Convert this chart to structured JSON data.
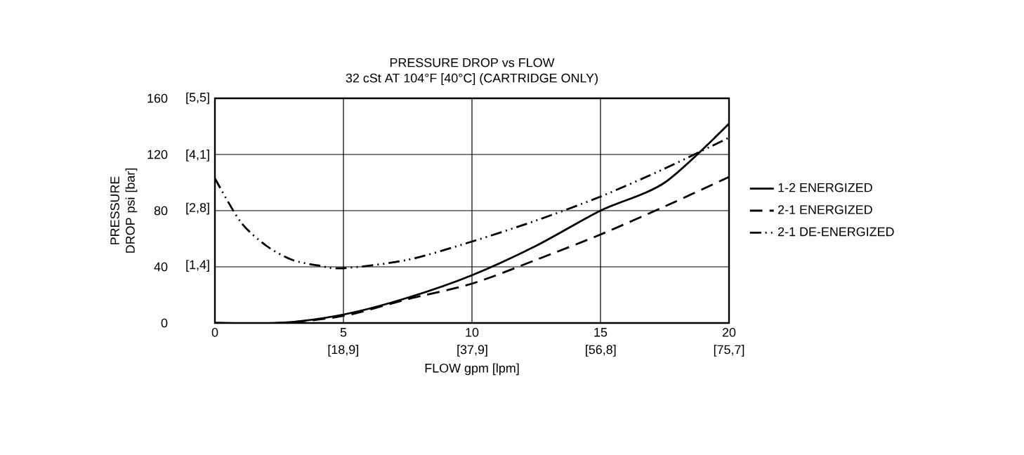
{
  "chart_data": {
    "type": "line",
    "title": "PRESSURE DROP vs FLOW",
    "subtitle": "32 cSt AT 104°F [40°C] (CARTRIDGE ONLY)",
    "xlabel": "FLOW gpm [lpm]",
    "ylabel": "PRESSURE DROP psi [bar]",
    "xlim": [
      0,
      20
    ],
    "ylim": [
      0,
      160
    ],
    "xticks": [
      0,
      5,
      10,
      15,
      20
    ],
    "yticks": [
      0,
      40,
      80,
      120,
      160
    ],
    "x2lim": [
      0,
      75.7
    ],
    "x2ticks": [
      {
        "value": 18.9,
        "label": "[18,9]"
      },
      {
        "value": 37.9,
        "label": "[37,9]"
      },
      {
        "value": 56.8,
        "label": "[56,8]"
      },
      {
        "value": 75.7,
        "label": "[75,7]"
      }
    ],
    "y2lim": [
      0,
      5.5
    ],
    "y2ticks": [
      {
        "value": 1.4,
        "label": "[1,4]"
      },
      {
        "value": 2.8,
        "label": "[2,8]"
      },
      {
        "value": 4.1,
        "label": "[4,1]"
      },
      {
        "value": 5.5,
        "label": "[5,5]"
      }
    ],
    "grid": true,
    "legend": "right",
    "marker": "none",
    "series": [
      {
        "name": "1-2 ENERGIZED",
        "color": "#000000",
        "line_style": "solid",
        "x": [
          0,
          2.5,
          5,
          7.5,
          10,
          12.5,
          15,
          17.5,
          20
        ],
        "values": [
          0,
          0,
          6,
          18,
          34,
          55,
          80,
          100,
          142
        ]
      },
      {
        "name": "2-1 ENERGIZED",
        "color": "#000000",
        "line_style": "dashed",
        "x": [
          0,
          2.5,
          5,
          7.5,
          10,
          12.5,
          15,
          17.5,
          20
        ],
        "values": [
          0,
          0,
          5,
          17,
          28,
          45,
          63,
          83,
          104
        ]
      },
      {
        "name": "2-1 DE-ENERGIZED",
        "color": "#000000",
        "line_style": "dashdotdotted",
        "x": [
          0,
          1,
          2,
          3,
          4,
          5,
          7.5,
          10,
          12.5,
          15,
          17.5,
          20
        ],
        "values": [
          103,
          72,
          55,
          45,
          41,
          39,
          45,
          58,
          73,
          90,
          110,
          132
        ]
      }
    ]
  }
}
